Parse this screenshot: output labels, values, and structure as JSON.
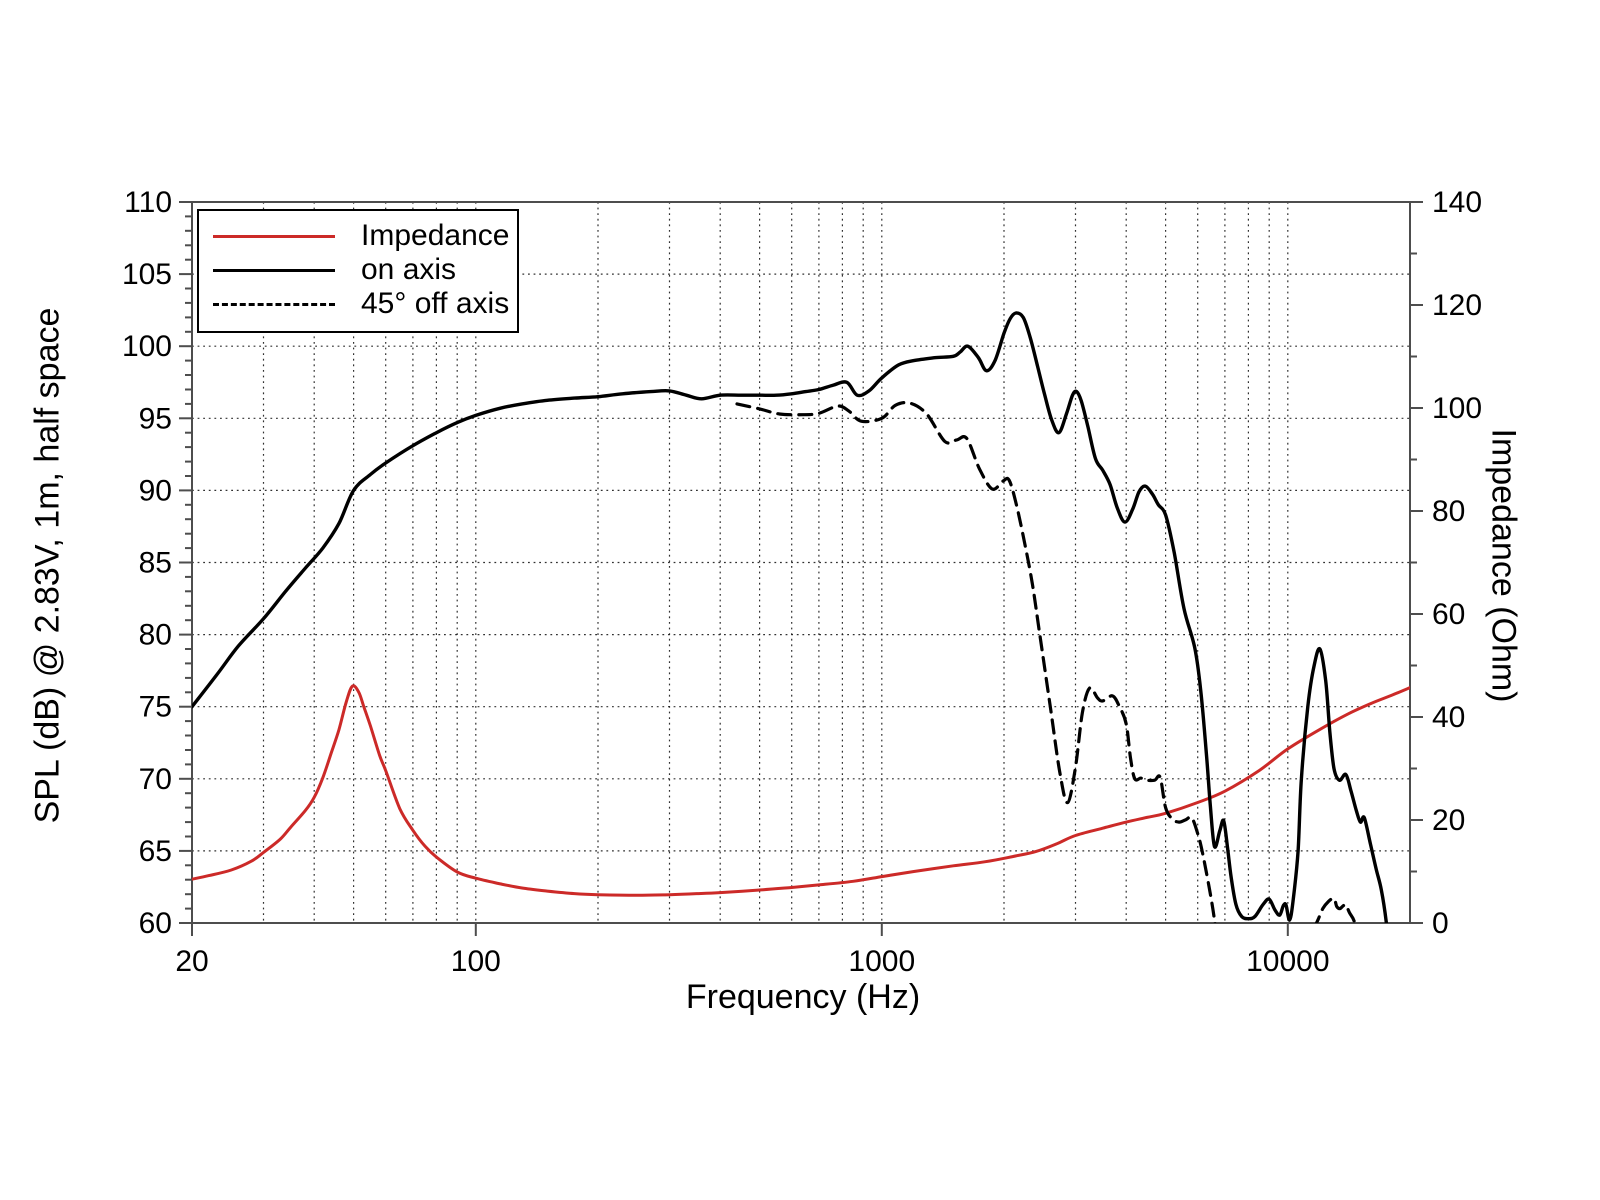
{
  "legend": {
    "items": [
      {
        "label": "Impedance",
        "style": "solid",
        "color": "#cc2a28"
      },
      {
        "label": "on axis",
        "style": "solid",
        "color": "#000000"
      },
      {
        "label": "45° off axis",
        "style": "dashed",
        "color": "#000000"
      }
    ]
  },
  "colors": {
    "impedance_red": "#cc2a28",
    "curve_black": "#000000",
    "frame_gray": "#4d4d4d",
    "grid_black": "#1a1a1a"
  },
  "chart_data": {
    "type": "line",
    "title": "",
    "xlabel": "Frequency (Hz)",
    "x": {
      "label": "Frequency (Hz)",
      "scale": "log",
      "min": 20,
      "max": 20000,
      "ticks": [
        {
          "value": 20,
          "label": "20"
        },
        {
          "value": 100,
          "label": "100"
        },
        {
          "value": 1000,
          "label": "1000"
        },
        {
          "value": 10000,
          "label": "10000"
        }
      ],
      "gridlines": [
        30,
        40,
        50,
        60,
        70,
        80,
        90,
        100,
        200,
        300,
        400,
        500,
        600,
        700,
        800,
        900,
        1000,
        2000,
        3000,
        4000,
        5000,
        6000,
        7000,
        8000,
        9000,
        10000
      ]
    },
    "y_left": {
      "label": "SPL (dB) @ 2.83V, 1m, half space",
      "min": 60,
      "max": 110,
      "tick_step": 5,
      "minor_step": 1,
      "ticks": [
        "60",
        "65",
        "70",
        "75",
        "80",
        "85",
        "90",
        "95",
        "100",
        "105",
        "110"
      ],
      "gridlines": [
        65,
        70,
        75,
        80,
        85,
        90,
        95,
        100,
        105
      ]
    },
    "y_right": {
      "label": "Impedance (Ohm)",
      "min": 0,
      "max": 140,
      "tick_step": 20,
      "minor_step": 10,
      "ticks": [
        "0",
        "20",
        "40",
        "60",
        "80",
        "100",
        "120",
        "140"
      ]
    },
    "grid": "dotted",
    "legend_position": "upper-left",
    "series": [
      {
        "name": "Impedance",
        "axis": "right",
        "color": "#cc2a28",
        "dash": "solid",
        "width": 3,
        "segments": [
          [
            [
              20,
              8.5
            ],
            [
              22,
              9.2
            ],
            [
              25,
              10.3
            ],
            [
              28,
              12.0
            ],
            [
              30,
              13.7
            ],
            [
              33,
              16.3
            ],
            [
              35,
              18.6
            ],
            [
              38,
              21.8
            ],
            [
              40,
              24.4
            ],
            [
              42,
              28.2
            ],
            [
              44,
              32.9
            ],
            [
              46,
              37.5
            ],
            [
              48,
              43.0
            ],
            [
              49.7,
              46.0
            ],
            [
              51.5,
              44.8
            ],
            [
              53,
              42.0
            ],
            [
              55,
              38.3
            ],
            [
              58,
              32.5
            ],
            [
              60,
              29.6
            ],
            [
              65,
              22.2
            ],
            [
              70,
              18.0
            ],
            [
              75,
              14.9
            ],
            [
              80,
              12.8
            ],
            [
              90,
              9.9
            ],
            [
              100,
              8.7
            ],
            [
              115,
              7.6
            ],
            [
              130,
              6.8
            ],
            [
              150,
              6.2
            ],
            [
              175,
              5.7
            ],
            [
              200,
              5.5
            ],
            [
              250,
              5.4
            ],
            [
              300,
              5.5
            ],
            [
              350,
              5.7
            ],
            [
              400,
              5.9
            ],
            [
              500,
              6.4
            ],
            [
              600,
              6.9
            ],
            [
              700,
              7.4
            ],
            [
              850,
              8.1
            ],
            [
              1000,
              9.0
            ],
            [
              1200,
              10.0
            ],
            [
              1500,
              11.1
            ],
            [
              1800,
              11.9
            ],
            [
              2100,
              12.9
            ],
            [
              2400,
              13.9
            ],
            [
              2700,
              15.4
            ],
            [
              3000,
              17.0
            ],
            [
              3500,
              18.4
            ],
            [
              4000,
              19.6
            ],
            [
              4500,
              20.5
            ],
            [
              5000,
              21.3
            ],
            [
              6000,
              23.4
            ],
            [
              7000,
              25.6
            ],
            [
              8500,
              29.6
            ],
            [
              10000,
              33.8
            ],
            [
              12000,
              37.6
            ],
            [
              14000,
              40.5
            ],
            [
              16000,
              42.6
            ],
            [
              18000,
              44.2
            ],
            [
              20000,
              45.7
            ]
          ]
        ]
      },
      {
        "name": "on axis",
        "axis": "left",
        "color": "#000000",
        "dash": "solid",
        "width": 3.4,
        "segments": [
          [
            [
              20,
              75.0
            ],
            [
              23,
              77.2
            ],
            [
              26,
              79.2
            ],
            [
              30,
              81.1
            ],
            [
              34,
              83.0
            ],
            [
              38,
              84.6
            ],
            [
              42,
              86.0
            ],
            [
              46,
              87.7
            ],
            [
              50,
              90.0
            ],
            [
              55,
              91.1
            ],
            [
              60,
              91.9
            ],
            [
              70,
              93.1
            ],
            [
              80,
              94.0
            ],
            [
              90,
              94.7
            ],
            [
              100,
              95.2
            ],
            [
              115,
              95.7
            ],
            [
              130,
              96.0
            ],
            [
              150,
              96.25
            ],
            [
              175,
              96.4
            ],
            [
              200,
              96.5
            ],
            [
              230,
              96.7
            ],
            [
              270,
              96.85
            ],
            [
              300,
              96.9
            ],
            [
              330,
              96.6
            ],
            [
              360,
              96.35
            ],
            [
              400,
              96.6
            ],
            [
              450,
              96.6
            ],
            [
              500,
              96.6
            ],
            [
              550,
              96.6
            ],
            [
              600,
              96.7
            ],
            [
              650,
              96.85
            ],
            [
              700,
              97.0
            ],
            [
              760,
              97.3
            ],
            [
              820,
              97.5
            ],
            [
              870,
              96.6
            ],
            [
              930,
              96.9
            ],
            [
              1000,
              97.8
            ],
            [
              1100,
              98.7
            ],
            [
              1200,
              99.0
            ],
            [
              1350,
              99.2
            ],
            [
              1500,
              99.3
            ],
            [
              1560,
              99.6
            ],
            [
              1630,
              100.0
            ],
            [
              1730,
              99.2
            ],
            [
              1810,
              98.3
            ],
            [
              1900,
              99.0
            ],
            [
              2000,
              100.9
            ],
            [
              2070,
              101.9
            ],
            [
              2140,
              102.3
            ],
            [
              2230,
              102.0
            ],
            [
              2320,
              100.6
            ],
            [
              2420,
              98.6
            ],
            [
              2520,
              96.6
            ],
            [
              2620,
              94.9
            ],
            [
              2730,
              94.0
            ],
            [
              2850,
              95.3
            ],
            [
              2950,
              96.6
            ],
            [
              3020,
              96.85
            ],
            [
              3100,
              96.2
            ],
            [
              3220,
              94.4
            ],
            [
              3360,
              92.2
            ],
            [
              3500,
              91.4
            ],
            [
              3650,
              90.4
            ],
            [
              3800,
              88.8
            ],
            [
              3970,
              87.8
            ],
            [
              4150,
              88.7
            ],
            [
              4300,
              89.9
            ],
            [
              4460,
              90.3
            ],
            [
              4650,
              89.7
            ],
            [
              4800,
              89.0
            ],
            [
              5000,
              88.3
            ],
            [
              5250,
              85.7
            ],
            [
              5550,
              81.8
            ],
            [
              5900,
              79.1
            ],
            [
              6100,
              76.2
            ],
            [
              6300,
              71.8
            ],
            [
              6450,
              68.0
            ],
            [
              6600,
              65.3
            ],
            [
              6800,
              66.4
            ],
            [
              6950,
              67.1
            ],
            [
              7100,
              65.3
            ],
            [
              7250,
              63.2
            ],
            [
              7450,
              61.3
            ],
            [
              7700,
              60.45
            ],
            [
              8000,
              60.3
            ],
            [
              8300,
              60.45
            ],
            [
              8700,
              61.3
            ],
            [
              9000,
              61.65
            ],
            [
              9300,
              60.9
            ],
            [
              9550,
              60.55
            ],
            [
              9750,
              61.2
            ],
            [
              9900,
              61.25
            ],
            [
              10100,
              60.2
            ],
            [
              10300,
              61.5
            ],
            [
              10600,
              65.0
            ],
            [
              10800,
              70.0
            ],
            [
              11200,
              75.0
            ],
            [
              11600,
              77.8
            ],
            [
              12000,
              79.0
            ],
            [
              12400,
              76.8
            ],
            [
              12700,
              73.2
            ],
            [
              13000,
              70.7
            ],
            [
              13400,
              69.9
            ],
            [
              13900,
              70.3
            ],
            [
              14300,
              69.2
            ],
            [
              14750,
              67.8
            ],
            [
              15100,
              67.0
            ],
            [
              15430,
              67.3
            ],
            [
              16000,
              65.4
            ],
            [
              16520,
              63.7
            ],
            [
              17000,
              62.3
            ],
            [
              17470,
              60.1
            ],
            [
              17800,
              57.5
            ]
          ]
        ]
      },
      {
        "name": "45° off axis",
        "axis": "left",
        "color": "#000000",
        "dash": "dashed",
        "width": 3.2,
        "segments": [
          [
            [
              440,
              96.0
            ],
            [
              500,
              95.65
            ],
            [
              560,
              95.3
            ],
            [
              640,
              95.25
            ],
            [
              700,
              95.35
            ],
            [
              780,
              95.85
            ],
            [
              830,
              95.5
            ],
            [
              890,
              94.8
            ],
            [
              1000,
              95.0
            ],
            [
              1080,
              95.9
            ],
            [
              1175,
              96.05
            ],
            [
              1290,
              95.3
            ],
            [
              1430,
              93.4
            ],
            [
              1530,
              93.5
            ],
            [
              1620,
              93.6
            ],
            [
              1740,
              91.5
            ],
            [
              1870,
              90.1
            ],
            [
              1990,
              90.65
            ],
            [
              2060,
              90.7
            ],
            [
              2150,
              88.9
            ],
            [
              2250,
              86.3
            ],
            [
              2350,
              83.5
            ],
            [
              2450,
              80.0
            ],
            [
              2600,
              75.0
            ],
            [
              2750,
              70.3
            ],
            [
              2870,
              68.35
            ],
            [
              3000,
              70.8
            ],
            [
              3120,
              74.6
            ],
            [
              3250,
              76.3
            ],
            [
              3400,
              75.6
            ],
            [
              3500,
              75.4
            ],
            [
              3700,
              75.75
            ],
            [
              3850,
              75.0
            ],
            [
              4000,
              73.8
            ],
            [
              4100,
              71.4
            ],
            [
              4200,
              70.0
            ],
            [
              4350,
              70.05
            ],
            [
              4500,
              69.9
            ],
            [
              4700,
              69.9
            ],
            [
              4850,
              70.1
            ],
            [
              5000,
              68.0
            ],
            [
              5200,
              67.2
            ],
            [
              5400,
              67.0
            ],
            [
              5600,
              67.15
            ],
            [
              5800,
              67.3
            ],
            [
              6000,
              66.2
            ],
            [
              6150,
              65.0
            ],
            [
              6400,
              62.5
            ],
            [
              6600,
              60.2
            ],
            [
              6750,
              58.0
            ]
          ],
          [
            [
              11600,
              59.6
            ],
            [
              11900,
              60.3
            ],
            [
              12200,
              61.0
            ],
            [
              12600,
              61.5
            ],
            [
              13000,
              61.7
            ],
            [
              13200,
              61.15
            ],
            [
              13450,
              61.0
            ],
            [
              13700,
              61.2
            ],
            [
              13900,
              61.25
            ],
            [
              14200,
              60.7
            ],
            [
              14600,
              60.05
            ],
            [
              14900,
              58.5
            ]
          ]
        ]
      }
    ]
  }
}
